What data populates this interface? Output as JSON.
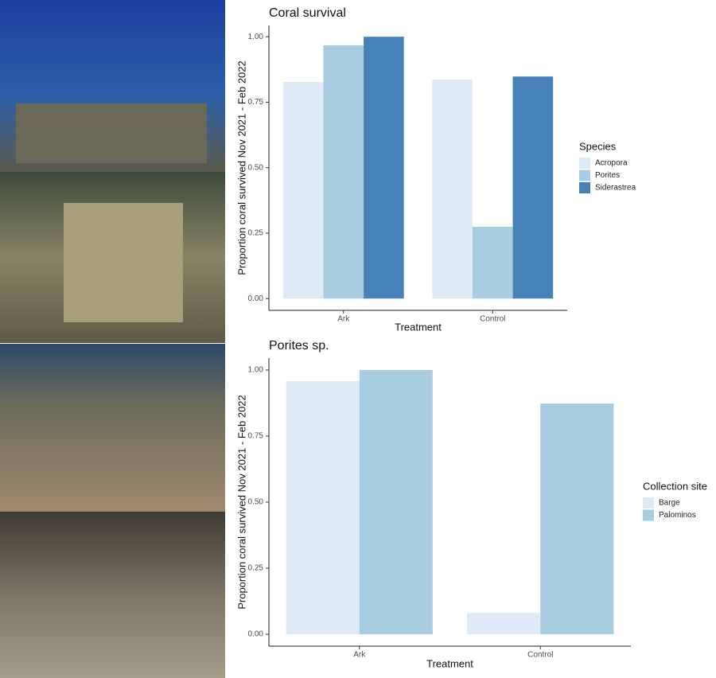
{
  "chart_data": [
    {
      "type": "bar",
      "title": "Coral survival",
      "x_label": "Treatment",
      "y_label": "Proportion coral survived Nov 2021 - Feb 2022",
      "categories": [
        "Ark",
        "Control"
      ],
      "legend_title": "Species",
      "series": [
        {
          "name": "Acropora",
          "color": "#deebf7",
          "values": [
            0.827,
            0.836
          ]
        },
        {
          "name": "Porites",
          "color": "#a8cce0",
          "values": [
            0.967,
            0.274
          ]
        },
        {
          "name": "Siderastrea",
          "color": "#4682b8",
          "values": [
            1.0,
            0.848
          ]
        }
      ],
      "ylim": [
        -0.045,
        1.043
      ],
      "yticks": [
        {
          "value": 0,
          "label": "0.00"
        },
        {
          "value": 0.25,
          "label": "0.25"
        },
        {
          "value": 0.5,
          "label": "0.50"
        },
        {
          "value": 0.75,
          "label": "0.75"
        },
        {
          "value": 1,
          "label": "1.00"
        }
      ],
      "grid": false,
      "legend": "right"
    },
    {
      "type": "bar",
      "title": "Porites sp.",
      "x_label": "Treatment",
      "y_label": "Proportion coral survived Nov 2021 - Feb 2022",
      "categories": [
        "Ark",
        "Control"
      ],
      "legend_title": "Collection site",
      "series": [
        {
          "name": "Barge",
          "color": "#deebf7",
          "values": [
            0.958,
            0.081
          ]
        },
        {
          "name": "Palominos",
          "color": "#a8cce0",
          "values": [
            1.0,
            0.873
          ]
        }
      ],
      "ylim": [
        -0.045,
        1.045
      ],
      "yticks": [
        {
          "value": 0,
          "label": "0.00"
        },
        {
          "value": 0.25,
          "label": "0.25"
        },
        {
          "value": 0.5,
          "label": "0.50"
        },
        {
          "value": 0.75,
          "label": "0.75"
        },
        {
          "value": 1,
          "label": "1.00"
        }
      ],
      "grid": false,
      "legend": "right"
    }
  ]
}
